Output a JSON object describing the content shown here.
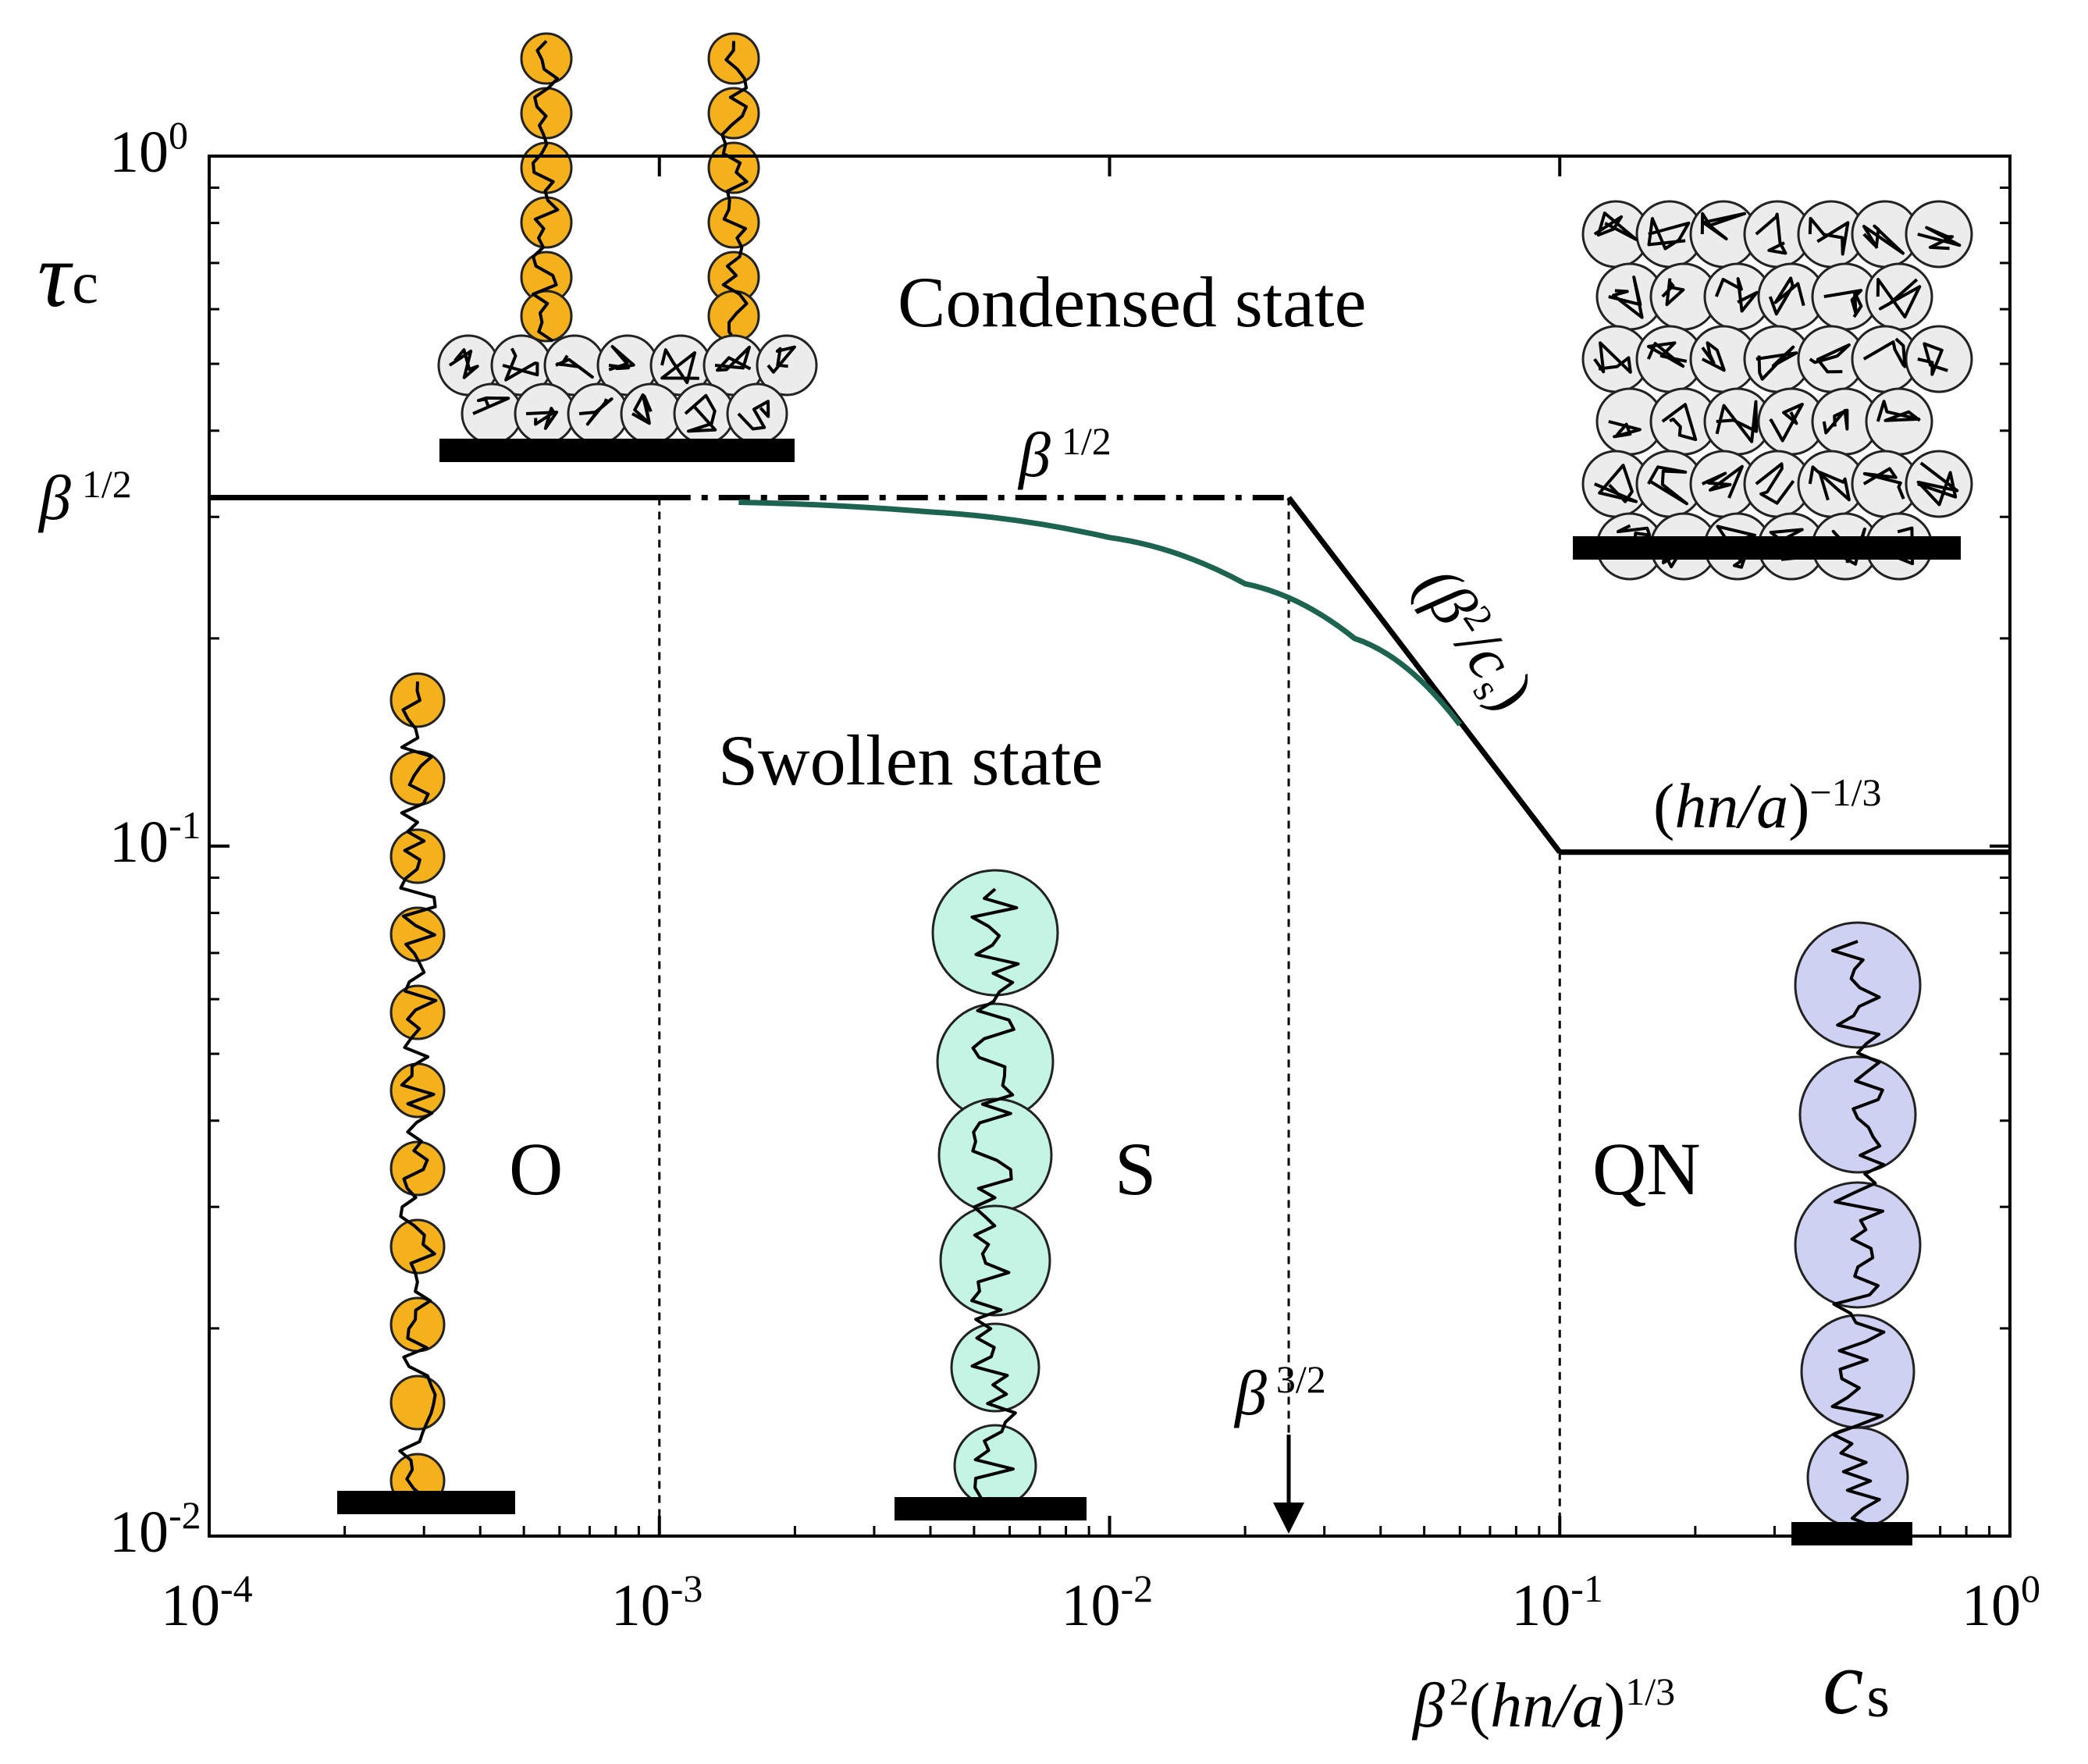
{
  "chart_data": {
    "type": "line",
    "scale": "log-log",
    "xlim": [
      0.0001,
      1
    ],
    "ylim": [
      0.01,
      1
    ],
    "x_ticks": [
      {
        "value": 0.0001,
        "base": "10",
        "exp": "-4"
      },
      {
        "value": 0.001,
        "base": "10",
        "exp": "-3"
      },
      {
        "value": 0.01,
        "base": "10",
        "exp": "-2"
      },
      {
        "value": 0.1,
        "base": "10",
        "exp": "-1"
      },
      {
        "value": 1,
        "base": "10",
        "exp": "0"
      }
    ],
    "y_ticks": [
      {
        "value": 1,
        "base": "10",
        "exp": "0"
      },
      {
        "value": 0.1,
        "base": "10",
        "exp": "-1"
      },
      {
        "value": 0.01,
        "base": "10",
        "exp": "-2"
      }
    ],
    "xlabel": {
      "main": "c",
      "sub": "s"
    },
    "ylabel": {
      "main": "τ",
      "sub": "c"
    },
    "series": [
      {
        "name": "boundary-low-salt",
        "style": "solid",
        "x": [
          0.0001,
          0.001
        ],
        "y": [
          0.32,
          0.32
        ]
      },
      {
        "name": "boundary-plateau",
        "style": "dash-dot",
        "x": [
          0.001,
          0.025
        ],
        "y": [
          0.32,
          0.32
        ]
      },
      {
        "name": "boundary-decay",
        "style": "solid",
        "x": [
          0.025,
          0.1
        ],
        "y": [
          0.32,
          0.098
        ]
      },
      {
        "name": "boundary-high-salt",
        "style": "solid",
        "x": [
          0.1,
          1
        ],
        "y": [
          0.098,
          0.098
        ]
      },
      {
        "name": "crossover-curve",
        "style": "solid",
        "color": "#1d6450",
        "x": [
          0.0015,
          0.004,
          0.01,
          0.02,
          0.035,
          0.06
        ],
        "y": [
          0.315,
          0.305,
          0.28,
          0.24,
          0.2,
          0.15
        ]
      }
    ],
    "vertical_lines": [
      0.001,
      0.025,
      0.1
    ],
    "arrow_at_x": 0.025,
    "regions": [
      {
        "id": "O",
        "label": "O"
      },
      {
        "id": "S",
        "label": "S"
      },
      {
        "id": "QN",
        "label": "QN"
      }
    ],
    "state_labels": {
      "condensed": "Condensed state",
      "swollen": "Swollen state"
    },
    "annotations": {
      "y_beta_half": {
        "sym": "β",
        "exp": "1/2"
      },
      "plateau": {
        "sym": "β",
        "exp": "1/2"
      },
      "slope": {
        "open": "(β",
        "exp": "2",
        "mid": "/c",
        "sub": "s",
        "close": ")"
      },
      "high_salt": {
        "open": "(",
        "it": "hn/a",
        "close": ")",
        "exp": "−1/3"
      },
      "arrow": {
        "sym": "β",
        "exp": "3/2"
      },
      "x_crossover": {
        "sym": "β",
        "exp1": "2",
        "open": "(",
        "it": "hn/a",
        "close": ")",
        "exp2": "1/3"
      }
    }
  },
  "colors": {
    "orange": "#f4b11b",
    "gray": "#ececec",
    "cyan": "#c4f4e4",
    "lavender": "#cfd1f3",
    "green": "#1d6450"
  }
}
